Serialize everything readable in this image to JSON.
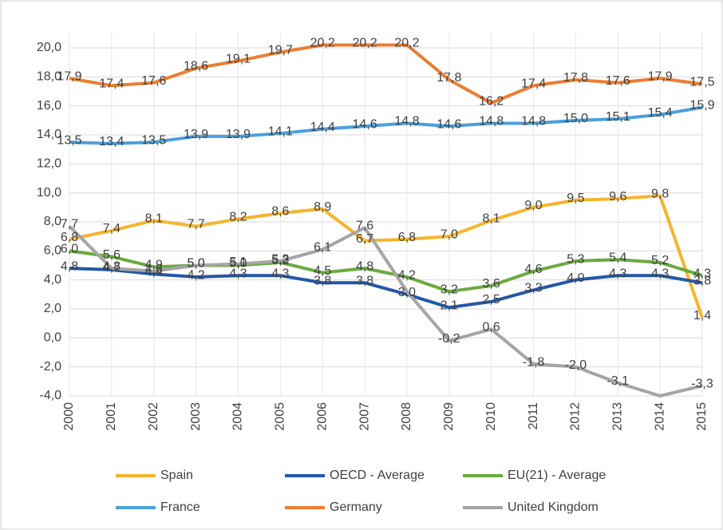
{
  "chart_data": {
    "type": "line",
    "categories": [
      "2000",
      "2001",
      "2002",
      "2003",
      "2004",
      "2005",
      "2006",
      "2007",
      "2008",
      "2009",
      "2010",
      "2011",
      "2012",
      "2013",
      "2014",
      "2015"
    ],
    "series": [
      {
        "name": "Spain",
        "color": "#f5b52e",
        "values": [
          6.8,
          7.4,
          8.1,
          7.7,
          8.2,
          8.6,
          8.9,
          6.7,
          6.8,
          7.0,
          8.1,
          9.0,
          9.5,
          9.6,
          9.8,
          1.4
        ],
        "value_labels": [
          "6,8",
          "7,4",
          "8,1",
          "7,7",
          "8,2",
          "8,6",
          "8,9",
          "6,7",
          "6,8",
          "7,0",
          "8,1",
          "9,0",
          "9,5",
          "9,6",
          "9,8",
          "1,4"
        ]
      },
      {
        "name": "OECD - Average",
        "color": "#2358a8",
        "values": [
          4.8,
          4.7,
          4.4,
          4.2,
          4.3,
          4.3,
          3.8,
          3.8,
          3.0,
          2.1,
          2.5,
          3.3,
          4.0,
          4.3,
          4.3,
          3.8
        ],
        "value_labels": [
          "4,8",
          "4,7",
          "4,4",
          "4,2",
          "4,3",
          "4,3",
          "3,8",
          "3,8",
          "3,0",
          "2,1",
          "2,5",
          "3,3",
          "4,0",
          "4,3",
          "4,3",
          "3,8"
        ]
      },
      {
        "name": "EU(21) - Average",
        "color": "#6aaa3e",
        "values": [
          6.0,
          5.6,
          4.9,
          5.0,
          5.0,
          5.2,
          4.5,
          4.8,
          4.2,
          3.2,
          3.6,
          4.6,
          5.3,
          5.4,
          5.2,
          4.3
        ],
        "value_labels": [
          "6,0",
          "5,6",
          "4,9",
          "5,0",
          "5,0",
          "5,2",
          "4,5",
          "4,8",
          "4,2",
          "3,2",
          "3,6",
          "4,6",
          "5,3",
          "5,4",
          "5,2",
          "4,3"
        ]
      },
      {
        "name": "France",
        "color": "#4aa0dd",
        "values": [
          13.5,
          13.4,
          13.5,
          13.9,
          13.9,
          14.1,
          14.4,
          14.6,
          14.8,
          14.6,
          14.8,
          14.8,
          15.0,
          15.1,
          15.4,
          15.9
        ],
        "value_labels": [
          "13,5",
          "13,4",
          "13,5",
          "13,9",
          "13,9",
          "14,1",
          "14,4",
          "14,6",
          "14,8",
          "14,6",
          "14,8",
          "14,8",
          "15,0",
          "15,1",
          "15,4",
          "15,9"
        ]
      },
      {
        "name": "Germany",
        "color": "#ed7d31",
        "values": [
          17.9,
          17.4,
          17.6,
          18.6,
          19.1,
          19.7,
          20.2,
          20.2,
          20.2,
          17.8,
          16.2,
          17.4,
          17.8,
          17.6,
          17.9,
          17.5
        ],
        "value_labels": [
          "17,9",
          "17,4",
          "17,6",
          "18,6",
          "19,1",
          "19,7",
          "20,2",
          "20,2",
          "20,2",
          "17,8",
          "16,2",
          "17,4",
          "17,8",
          "17,6",
          "17,9",
          "17,5"
        ]
      },
      {
        "name": "United Kingdom",
        "color": "#a5a5a5",
        "values": [
          7.7,
          4.8,
          4.6,
          5.0,
          5.1,
          5.3,
          6.1,
          7.6,
          3.2,
          -0.2,
          0.6,
          -1.8,
          -2.0,
          -3.1,
          -4.0,
          -3.3
        ],
        "value_labels": [
          "7,7",
          "4,8",
          "4,6",
          "5,0",
          "5,1",
          "5,3",
          "6,1",
          "7,6",
          null,
          "-0,2",
          "0,6",
          "-1,8",
          "-2,0",
          "-3,1",
          null,
          "-3,3"
        ]
      }
    ],
    "ylim": [
      -4,
      20
    ],
    "yticks": [
      {
        "value": -4,
        "label": "-4,0"
      },
      {
        "value": -2,
        "label": "-2,0"
      },
      {
        "value": 0,
        "label": "0,0"
      },
      {
        "value": 2,
        "label": "2,0"
      },
      {
        "value": 4,
        "label": "4,0"
      },
      {
        "value": 6,
        "label": "6,0"
      },
      {
        "value": 8,
        "label": "8,0"
      },
      {
        "value": 10,
        "label": "10,0"
      },
      {
        "value": 12,
        "label": "12,0"
      },
      {
        "value": 14,
        "label": "14,0"
      },
      {
        "value": 16,
        "label": "16,0"
      },
      {
        "value": 18,
        "label": "18,0"
      },
      {
        "value": 20,
        "label": "20,0"
      }
    ],
    "grid": true,
    "legend": "bottom"
  }
}
